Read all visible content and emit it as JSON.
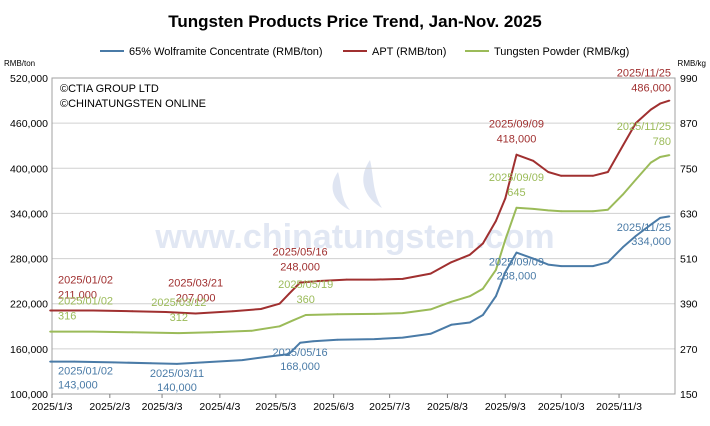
{
  "chart_data": {
    "type": "line",
    "title": "Tungsten Products Price Trend, Jan-Nov. 2025",
    "left_axis_unit": "RMB/ton",
    "right_axis_unit": "RMB/kg",
    "left_ylim": [
      100000,
      520000
    ],
    "left_ticks": [
      "100,000",
      "160,000",
      "220,000",
      "280,000",
      "340,000",
      "400,000",
      "460,000",
      "520,000"
    ],
    "right_ylim": [
      150,
      990
    ],
    "right_ticks": [
      "150",
      "270",
      "390",
      "510",
      "630",
      "750",
      "870",
      "990"
    ],
    "x_range": [
      "2025-01-03",
      "2025-12-03"
    ],
    "x_ticks": [
      {
        "date": "2025-01-03",
        "label": "2025/1/3"
      },
      {
        "date": "2025-02-03",
        "label": "2025/2/3"
      },
      {
        "date": "2025-03-03",
        "label": "2025/3/3"
      },
      {
        "date": "2025-04-03",
        "label": "2025/4/3"
      },
      {
        "date": "2025-05-03",
        "label": "2025/5/3"
      },
      {
        "date": "2025-06-03",
        "label": "2025/6/3"
      },
      {
        "date": "2025-07-03",
        "label": "2025/7/3"
      },
      {
        "date": "2025-08-03",
        "label": "2025/8/3"
      },
      {
        "date": "2025-09-03",
        "label": "2025/9/3"
      },
      {
        "date": "2025-10-03",
        "label": "2025/10/3"
      },
      {
        "date": "2025-11-03",
        "label": "2025/11/3"
      }
    ],
    "grid": true,
    "legend_position": "top",
    "copyright": [
      "©CTIA GROUP LTD",
      "©CHINATUNGSTEN ONLINE"
    ],
    "watermark": "www.chinatungsten.com",
    "series": [
      {
        "name": "65% Wolframite Concentrate (RMB/ton)",
        "color": "#4a7ba7",
        "axis": "left",
        "points": [
          [
            "2025-01-02",
            143000
          ],
          [
            "2025-01-15",
            143000
          ],
          [
            "2025-02-05",
            142000
          ],
          [
            "2025-02-25",
            141000
          ],
          [
            "2025-03-11",
            140000
          ],
          [
            "2025-03-25",
            142000
          ],
          [
            "2025-04-15",
            145000
          ],
          [
            "2025-04-30",
            150000
          ],
          [
            "2025-05-10",
            153000
          ],
          [
            "2025-05-16",
            168000
          ],
          [
            "2025-05-23",
            170000
          ],
          [
            "2025-06-05",
            172000
          ],
          [
            "2025-06-25",
            173000
          ],
          [
            "2025-07-10",
            175000
          ],
          [
            "2025-07-25",
            180000
          ],
          [
            "2025-08-05",
            192000
          ],
          [
            "2025-08-15",
            195000
          ],
          [
            "2025-08-22",
            205000
          ],
          [
            "2025-08-29",
            230000
          ],
          [
            "2025-09-03",
            262000
          ],
          [
            "2025-09-09",
            288000
          ],
          [
            "2025-09-18",
            280000
          ],
          [
            "2025-09-26",
            272000
          ],
          [
            "2025-10-03",
            270000
          ],
          [
            "2025-10-20",
            270000
          ],
          [
            "2025-10-28",
            275000
          ],
          [
            "2025-11-05",
            295000
          ],
          [
            "2025-11-12",
            310000
          ],
          [
            "2025-11-20",
            325000
          ],
          [
            "2025-11-25",
            334000
          ],
          [
            "2025-11-30",
            336000
          ]
        ]
      },
      {
        "name": "APT (RMB/ton)",
        "color": "#a03030",
        "axis": "left",
        "points": [
          [
            "2025-01-02",
            211000
          ],
          [
            "2025-01-25",
            211000
          ],
          [
            "2025-02-15",
            210000
          ],
          [
            "2025-03-05",
            209000
          ],
          [
            "2025-03-21",
            207000
          ],
          [
            "2025-04-10",
            210000
          ],
          [
            "2025-04-25",
            213000
          ],
          [
            "2025-05-05",
            220000
          ],
          [
            "2025-05-10",
            233000
          ],
          [
            "2025-05-16",
            248000
          ],
          [
            "2025-05-25",
            250000
          ],
          [
            "2025-06-10",
            252000
          ],
          [
            "2025-06-25",
            252000
          ],
          [
            "2025-07-10",
            253000
          ],
          [
            "2025-07-25",
            260000
          ],
          [
            "2025-08-05",
            275000
          ],
          [
            "2025-08-15",
            285000
          ],
          [
            "2025-08-22",
            300000
          ],
          [
            "2025-08-29",
            330000
          ],
          [
            "2025-09-03",
            360000
          ],
          [
            "2025-09-09",
            418000
          ],
          [
            "2025-09-18",
            410000
          ],
          [
            "2025-09-26",
            395000
          ],
          [
            "2025-10-03",
            390000
          ],
          [
            "2025-10-20",
            390000
          ],
          [
            "2025-10-28",
            395000
          ],
          [
            "2025-11-05",
            430000
          ],
          [
            "2025-11-12",
            460000
          ],
          [
            "2025-11-20",
            478000
          ],
          [
            "2025-11-25",
            486000
          ],
          [
            "2025-11-30",
            490000
          ]
        ]
      },
      {
        "name": "Tungsten Powder (RMB/kg)",
        "color": "#9bbb59",
        "axis": "right",
        "points": [
          [
            "2025-01-02",
            316
          ],
          [
            "2025-01-25",
            316
          ],
          [
            "2025-02-15",
            314
          ],
          [
            "2025-03-12",
            312
          ],
          [
            "2025-03-30",
            314
          ],
          [
            "2025-04-20",
            318
          ],
          [
            "2025-05-05",
            330
          ],
          [
            "2025-05-12",
            345
          ],
          [
            "2025-05-19",
            360
          ],
          [
            "2025-06-05",
            362
          ],
          [
            "2025-06-25",
            363
          ],
          [
            "2025-07-10",
            365
          ],
          [
            "2025-07-25",
            375
          ],
          [
            "2025-08-05",
            395
          ],
          [
            "2025-08-15",
            410
          ],
          [
            "2025-08-22",
            430
          ],
          [
            "2025-08-29",
            480
          ],
          [
            "2025-09-03",
            560
          ],
          [
            "2025-09-09",
            645
          ],
          [
            "2025-09-18",
            642
          ],
          [
            "2025-09-26",
            638
          ],
          [
            "2025-10-03",
            636
          ],
          [
            "2025-10-20",
            636
          ],
          [
            "2025-10-28",
            640
          ],
          [
            "2025-11-05",
            680
          ],
          [
            "2025-11-12",
            720
          ],
          [
            "2025-11-20",
            765
          ],
          [
            "2025-11-25",
            780
          ],
          [
            "2025-11-30",
            785
          ]
        ]
      }
    ],
    "annotations": [
      {
        "series": 1,
        "date": "2025/01/02",
        "value": "211,000"
      },
      {
        "series": 1,
        "date": "2025/03/21",
        "value": "207,000"
      },
      {
        "series": 1,
        "date": "2025/05/16",
        "value": "248,000"
      },
      {
        "series": 1,
        "date": "2025/09/09",
        "value": "418,000"
      },
      {
        "series": 1,
        "date": "2025/11/25",
        "value": "486,000"
      },
      {
        "series": 0,
        "date": "2025/01/02",
        "value": "143,000"
      },
      {
        "series": 0,
        "date": "2025/03/11",
        "value": "140,000"
      },
      {
        "series": 0,
        "date": "2025/05/16",
        "value": "168,000"
      },
      {
        "series": 0,
        "date": "2025/09/09",
        "value": "288,000"
      },
      {
        "series": 0,
        "date": "2025/11/25",
        "value": "334,000"
      },
      {
        "series": 2,
        "date": "2025/01/02",
        "value": "316"
      },
      {
        "series": 2,
        "date": "2025/03/12",
        "value": "312"
      },
      {
        "series": 2,
        "date": "2025/05/19",
        "value": "360"
      },
      {
        "series": 2,
        "date": "2025/09/09",
        "value": "645"
      },
      {
        "series": 2,
        "date": "2025/11/25",
        "value": "780"
      }
    ]
  }
}
